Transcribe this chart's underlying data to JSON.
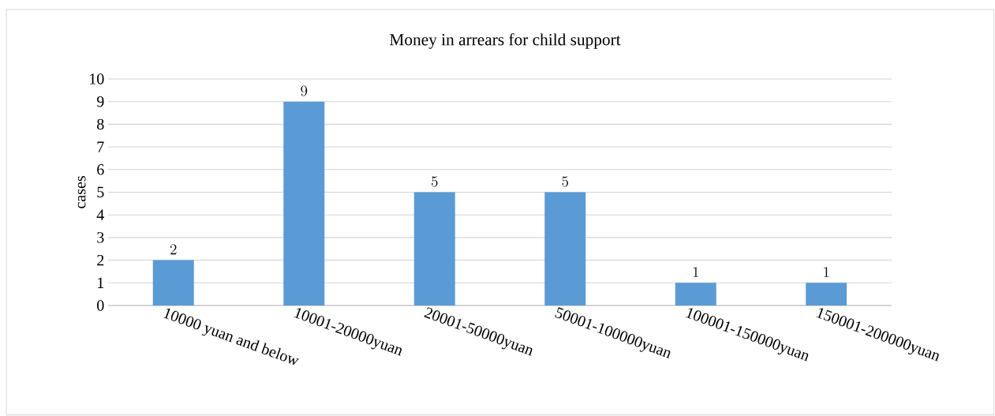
{
  "chart_data": {
    "type": "bar",
    "title": "Money in arrears for child support",
    "ylabel": "cases",
    "categories": [
      "10000 yuan and below",
      "10001-20000yuan",
      "20001-50000yuan",
      "50001-100000yuan",
      "100001-150000yuan",
      "150001-200000yuan"
    ],
    "values": [
      2,
      9,
      5,
      5,
      1,
      1
    ],
    "color": "#5b9bd5",
    "ylim": [
      0,
      10
    ],
    "yticks": [
      0,
      1,
      2,
      3,
      4,
      5,
      6,
      7,
      8,
      9,
      10
    ],
    "grid": "y",
    "data_labels": true
  }
}
